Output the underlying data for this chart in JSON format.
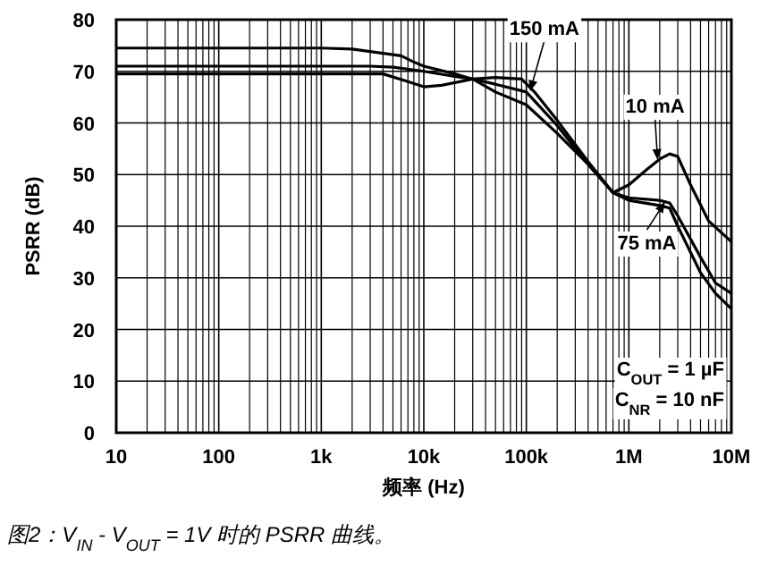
{
  "chart_data": {
    "type": "line",
    "xlabel": "频率 (Hz)",
    "ylabel": "PSRR (dB)",
    "log": "x",
    "grid": true,
    "marker": "none",
    "line_style": "solid",
    "xlim": [
      10,
      10000000
    ],
    "ylim": [
      0,
      80
    ],
    "xticks": [
      10,
      100,
      {
        "value": 1000,
        "label": "1k"
      },
      {
        "value": 10000,
        "label": "10k"
      },
      {
        "value": 100000,
        "label": "100k"
      },
      {
        "value": 1000000,
        "label": "1M"
      },
      {
        "value": 10000000,
        "label": "10M"
      }
    ],
    "yticks": [
      0,
      10,
      20,
      30,
      40,
      50,
      60,
      70,
      80
    ],
    "series": [
      {
        "name": "10 mA",
        "color": "#000000",
        "x": [
          10,
          1000,
          2000,
          4000,
          6000,
          8000,
          10000,
          20000,
          30000,
          50000,
          100000,
          200000,
          400000,
          700000,
          1000000,
          1500000,
          2000000,
          2500000,
          3000000,
          4000000,
          6000000,
          10000000
        ],
        "values": [
          74.5,
          74.5,
          74.3,
          73.5,
          73,
          71.8,
          71,
          69.5,
          68.5,
          66,
          63.5,
          58,
          52,
          46.5,
          48,
          51,
          53,
          54,
          53.5,
          48,
          41,
          37
        ]
      },
      {
        "name": "75 mA",
        "color": "#000000",
        "x": [
          10,
          3000,
          5000,
          10000,
          20000,
          30000,
          50000,
          100000,
          200000,
          400000,
          700000,
          1000000,
          2000000,
          2500000,
          3000000,
          5000000,
          7000000,
          10000000
        ],
        "values": [
          71,
          71,
          70.8,
          70,
          69,
          68.5,
          67.5,
          66,
          59.5,
          52,
          46.5,
          45.5,
          45,
          44.5,
          42,
          34,
          29,
          27
        ]
      },
      {
        "name": "150 mA",
        "color": "#000000",
        "x": [
          10,
          4000,
          7000,
          10000,
          15000,
          30000,
          50000,
          90000,
          120000,
          200000,
          400000,
          700000,
          1000000,
          2000000,
          2500000,
          3000000,
          5000000,
          7000000,
          10000000
        ],
        "values": [
          69.5,
          69.5,
          68,
          67,
          67.3,
          68.5,
          68.8,
          68.5,
          66,
          60.5,
          52.5,
          46.5,
          45,
          44,
          43.5,
          40,
          31,
          27,
          24
        ]
      }
    ],
    "annotations": [
      "C$_{OUT}$ = 1 µF",
      "C$_{NR}$ = 10 nF",
      "图2：V$_{IN}$ - V$_{OUT}$ = 1V 时的 PSRR 曲线。"
    ]
  }
}
